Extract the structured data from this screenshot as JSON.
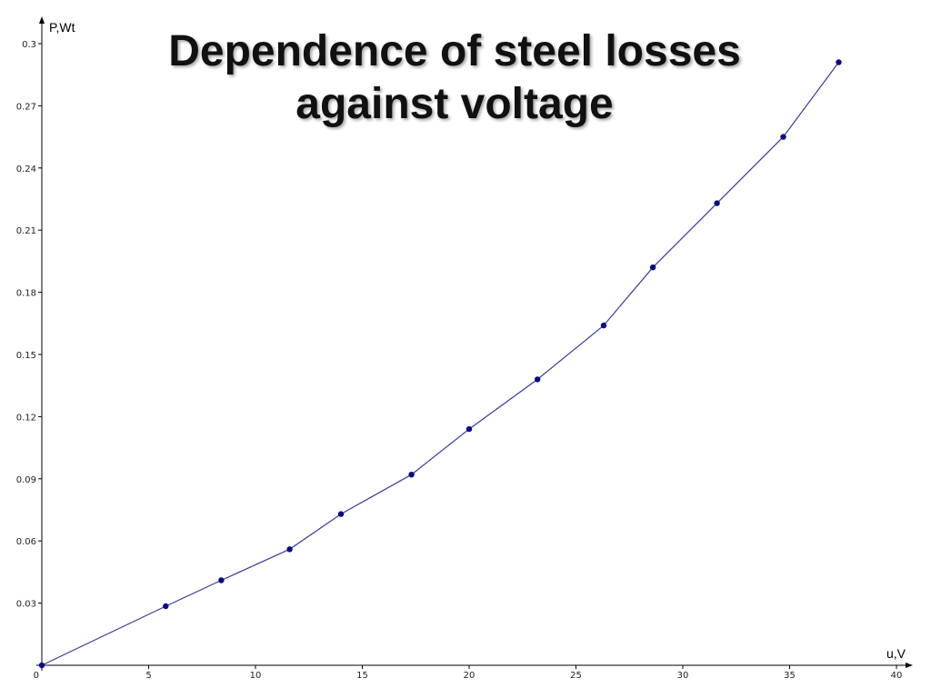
{
  "chart_data": {
    "type": "line",
    "title": [
      "Dependence of steel losses",
      "against  voltage"
    ],
    "xlabel": "u,V",
    "ylabel": "P,Wt",
    "xlim": [
      0,
      40
    ],
    "ylim": [
      0,
      0.3
    ],
    "x_ticks": [
      "0",
      "5",
      "10",
      "15",
      "20",
      "25",
      "30",
      "35",
      "40"
    ],
    "y_ticks": [
      "0.03",
      "0.06",
      "0.09",
      "0.12",
      "0.15",
      "0.18",
      "0.21",
      "0.24",
      "0.27",
      "0.3"
    ],
    "grid": false,
    "markers": true,
    "colors": {
      "line": "#3a3aa0",
      "marker": "#0a0a80",
      "axis": "#000000"
    },
    "series": [
      {
        "x": [
          0,
          5.8,
          8.4,
          11.6,
          14,
          17.3,
          20,
          23.2,
          26.3,
          28.6,
          31.6,
          34.7,
          37.3
        ],
        "y": [
          0,
          0.0285,
          0.041,
          0.056,
          0.073,
          0.092,
          0.114,
          0.138,
          0.164,
          0.192,
          0.223,
          0.255,
          0.291
        ]
      }
    ]
  }
}
